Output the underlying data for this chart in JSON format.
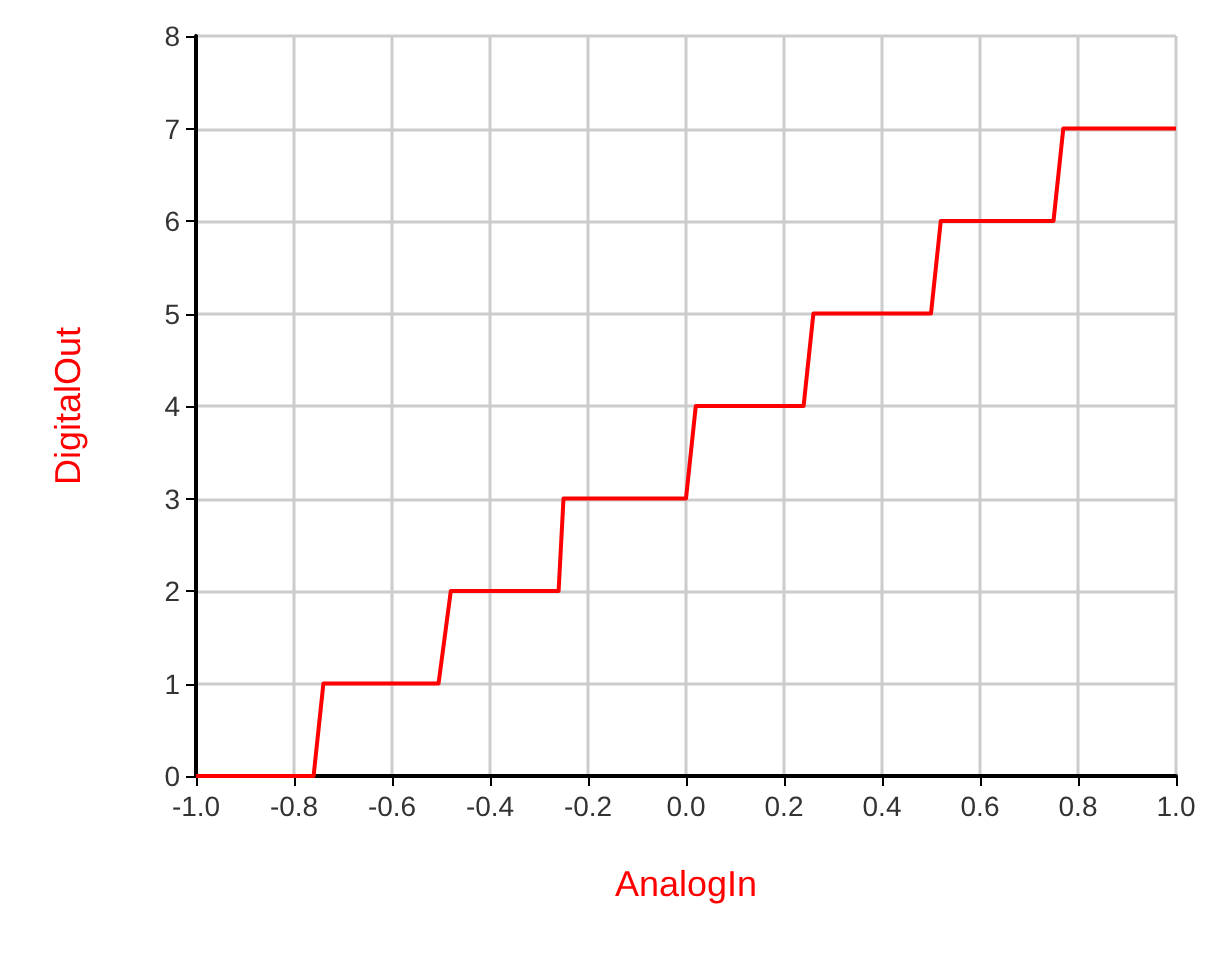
{
  "chart_data": {
    "type": "line",
    "xlabel": "AnalogIn",
    "ylabel": "DigitalOut",
    "series": [
      {
        "color": "#ff0000",
        "x": [
          -1.0,
          -0.76,
          -0.74,
          -0.505,
          -0.48,
          -0.26,
          -0.25,
          0.0,
          0.02,
          0.24,
          0.26,
          0.5,
          0.52,
          0.75,
          0.77,
          1.0
        ],
        "values": [
          0,
          0,
          1,
          1,
          2,
          2,
          3,
          3,
          4,
          4,
          5,
          5,
          6,
          6,
          7,
          7
        ]
      }
    ],
    "xlim": [
      -1.0,
      1.0
    ],
    "xticks": [
      {
        "value": -1,
        "label": "-1.0"
      },
      {
        "value": -0.8,
        "label": "-0.8"
      },
      {
        "value": -0.6,
        "label": "-0.6"
      },
      {
        "value": -0.4,
        "label": "-0.4"
      },
      {
        "value": -0.2,
        "label": "-0.2"
      },
      {
        "value": 0,
        "label": "0.0"
      },
      {
        "value": 0.2,
        "label": "0.2"
      },
      {
        "value": 0.4,
        "label": "0.4"
      },
      {
        "value": 0.6,
        "label": "0.6"
      },
      {
        "value": 0.8,
        "label": "0.8"
      },
      {
        "value": 1,
        "label": "1.0"
      }
    ],
    "ylim": [
      0,
      8
    ],
    "yticks": [
      0,
      1,
      2,
      3,
      4,
      5,
      6,
      7,
      8
    ],
    "grid": true,
    "marker": "none",
    "line_style": "solid"
  }
}
